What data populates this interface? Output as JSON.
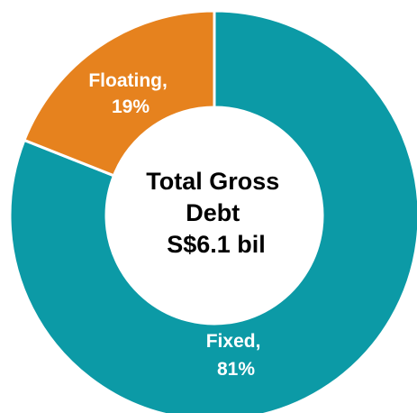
{
  "chart_data": {
    "type": "pie",
    "variant": "donut",
    "categories": [
      "Fixed",
      "Floating"
    ],
    "values": [
      81,
      19
    ],
    "unit": "%",
    "colors": [
      "#0c9aa6",
      "#e6821e"
    ],
    "data_labels": [
      {
        "line1": "Fixed,",
        "line2": "81%"
      },
      {
        "line1": "Floating,",
        "line2": "19%"
      }
    ],
    "center_label": [
      "Total Gross",
      "Debt",
      "S$6.1 bil"
    ],
    "start_angle": "12 o'clock",
    "direction": "clockwise",
    "legend": "none"
  }
}
